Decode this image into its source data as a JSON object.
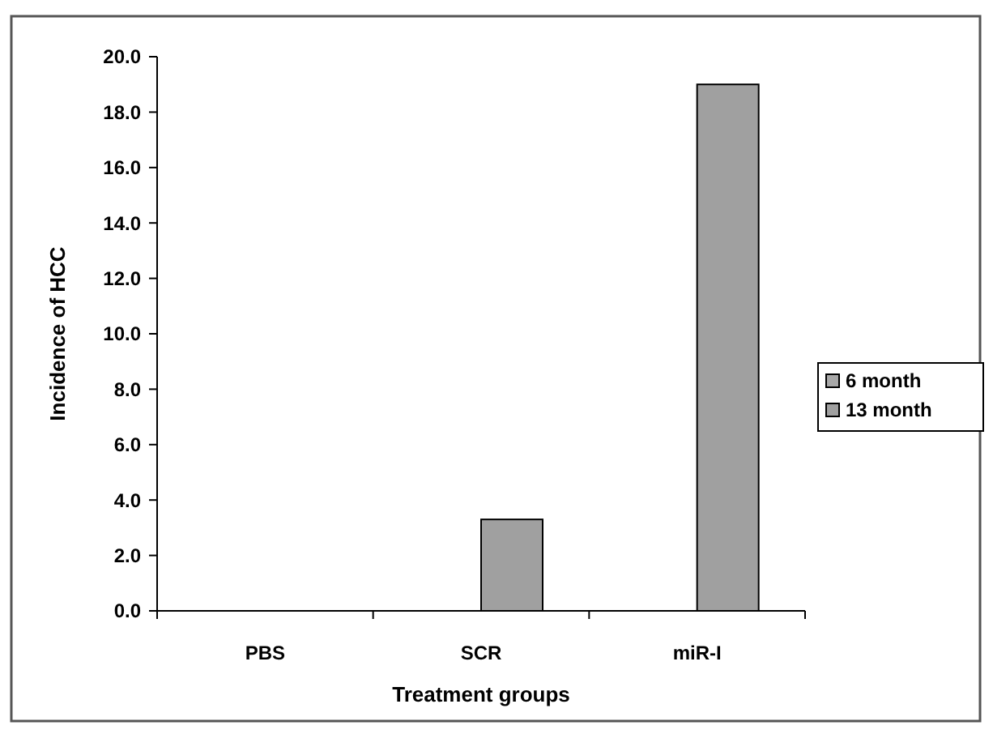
{
  "chart_data": {
    "type": "bar",
    "xlabel": "Treatment groups",
    "ylabel": "Incidence of HCC",
    "categories": [
      "PBS",
      "SCR",
      "miR-I"
    ],
    "series": [
      {
        "name": "6 month",
        "color": "#a8a8a8",
        "values": [
          0,
          0,
          0
        ]
      },
      {
        "name": "13 month",
        "color": "#a0a0a0",
        "values": [
          0,
          3.3,
          19.0
        ]
      }
    ],
    "ylim": [
      0,
      20
    ],
    "yticks": [
      {
        "value": 0,
        "label": "0.0"
      },
      {
        "value": 2,
        "label": "2.0"
      },
      {
        "value": 4,
        "label": "4.0"
      },
      {
        "value": 6,
        "label": "6.0"
      },
      {
        "value": 8,
        "label": "8.0"
      },
      {
        "value": 10,
        "label": "10.0"
      },
      {
        "value": 12,
        "label": "12.0"
      },
      {
        "value": 14,
        "label": "14.0"
      },
      {
        "value": 16,
        "label": "16.0"
      },
      {
        "value": 18,
        "label": "18.0"
      },
      {
        "value": 20,
        "label": "20.0"
      }
    ],
    "legend": "right"
  }
}
